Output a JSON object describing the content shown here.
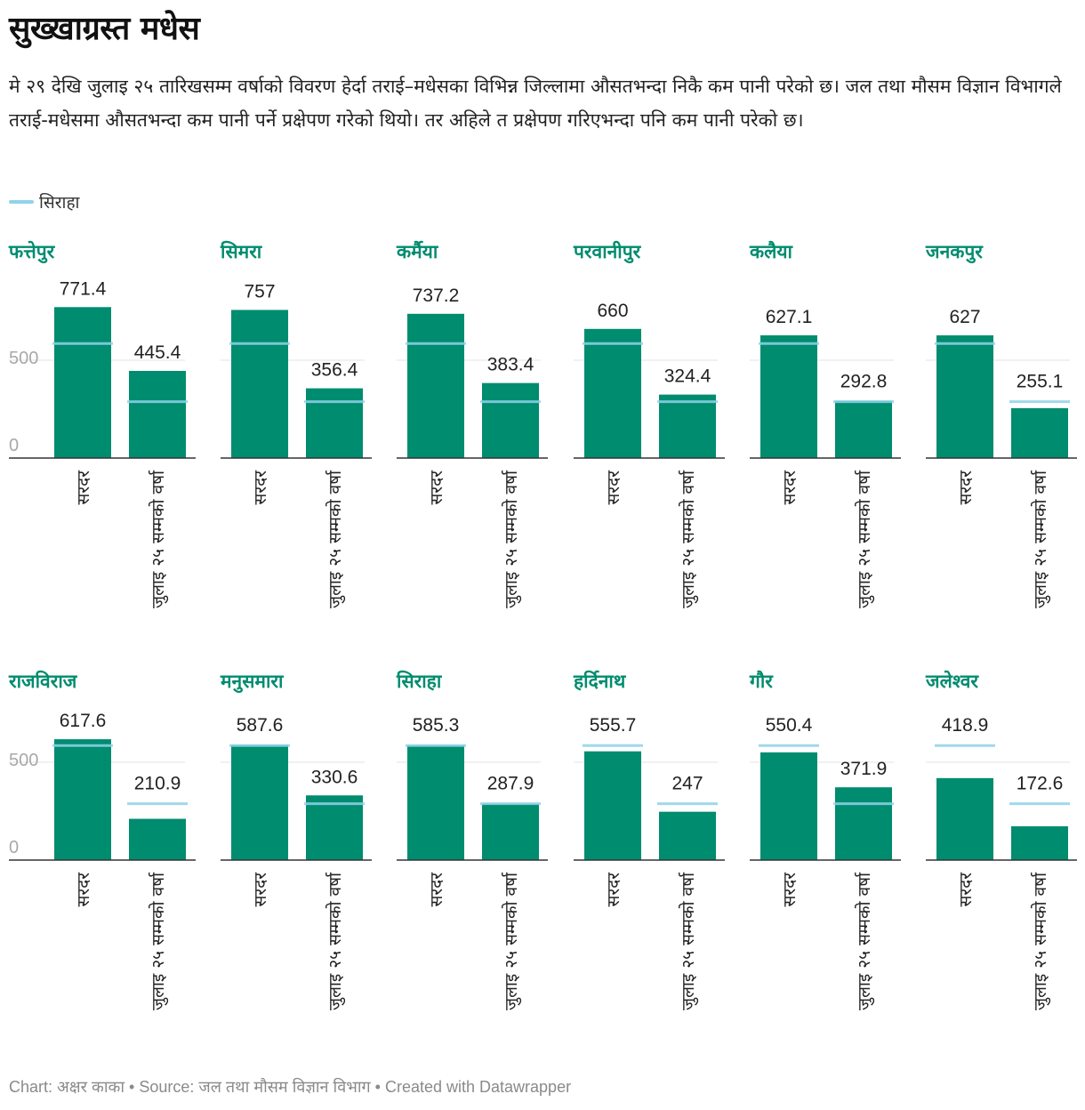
{
  "title": "सुख्खाग्रस्त मधेस",
  "description": "मे २९ देखि जुलाइ २५ तारिखसम्म वर्षाको विवरण हेर्दा तराई–मधेसका विभिन्न जिल्लामा औसतभन्दा निकै कम पानी परेको छ। जल तथा मौसम विज्ञान विभागले तराई-मधेसमा औसतभन्दा कम पानी पर्ने प्रक्षेपण गरेको थियो। तर अहिले त प्रक्षेपण गरिएभन्दा पनि कम पानी परेको छ।",
  "legend": {
    "label": "सिराहा",
    "color": "#8fd3e8"
  },
  "footer": "Chart: अक्षर काका • Source: जल तथा मौसम विज्ञान विभाग • Created with Datawrapper",
  "colors": {
    "bar": "#008c6f",
    "panel_title": "#008c6f",
    "reference": "#8fd3e8"
  },
  "chart_data": {
    "type": "bar",
    "categories": [
      "सरदर",
      "जुलाइ २५ सम्मको वर्षा"
    ],
    "y_ticks": [
      0,
      500
    ],
    "ylim": [
      0,
      850
    ],
    "grid": true,
    "reference_series": {
      "name": "सिराहा",
      "values": [
        585.3,
        287.9
      ]
    },
    "panels": [
      {
        "name": "फत्तेपुर",
        "values": [
          771.4,
          445.4
        ]
      },
      {
        "name": "सिमरा",
        "values": [
          757,
          356.4
        ]
      },
      {
        "name": "कर्मैया",
        "values": [
          737.2,
          383.4
        ]
      },
      {
        "name": "परवानीपुर",
        "values": [
          660,
          324.4
        ]
      },
      {
        "name": "कलैया",
        "values": [
          627.1,
          292.8
        ]
      },
      {
        "name": "जनकपुर",
        "values": [
          627,
          255.1
        ]
      },
      {
        "name": "राजविराज",
        "values": [
          617.6,
          210.9
        ]
      },
      {
        "name": "मनुसमारा",
        "values": [
          587.6,
          330.6
        ]
      },
      {
        "name": "सिराहा",
        "values": [
          585.3,
          287.9
        ]
      },
      {
        "name": "हर्दिनाथ",
        "values": [
          555.7,
          247
        ]
      },
      {
        "name": "गौर",
        "values": [
          550.4,
          371.9
        ]
      },
      {
        "name": "जलेश्वर",
        "values": [
          418.9,
          172.6
        ]
      }
    ]
  }
}
